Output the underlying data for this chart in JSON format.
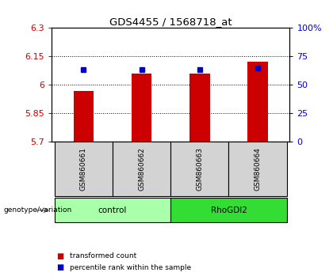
{
  "title": "GDS4455 / 1568718_at",
  "samples": [
    "GSM860661",
    "GSM860662",
    "GSM860663",
    "GSM860664"
  ],
  "bar_values": [
    5.965,
    6.06,
    6.06,
    6.12
  ],
  "percentile_values": [
    63,
    63,
    63,
    65
  ],
  "ymin": 5.7,
  "ymax": 6.3,
  "yticks": [
    5.7,
    5.85,
    6.0,
    6.15,
    6.3
  ],
  "ytick_labels": [
    "5.7",
    "5.85",
    "6",
    "6.15",
    "6.3"
  ],
  "y2min": 0,
  "y2max": 100,
  "y2ticks": [
    0,
    25,
    50,
    75,
    100
  ],
  "y2tick_labels": [
    "0",
    "25",
    "50",
    "75",
    "100%"
  ],
  "bar_color": "#cc0000",
  "dot_color": "#0000cc",
  "bar_width": 0.35,
  "groups": [
    {
      "label": "control",
      "indices": [
        0,
        1
      ],
      "color": "#aaffaa"
    },
    {
      "label": "RhoGDI2",
      "indices": [
        2,
        3
      ],
      "color": "#33dd33"
    }
  ],
  "genotype_label": "genotype/variation",
  "legend_bar_label": "transformed count",
  "legend_dot_label": "percentile rank within the sample",
  "left_tick_color": "#cc0000",
  "right_tick_color": "#0000cc",
  "sample_box_color": "#d3d3d3",
  "fig_width": 4.2,
  "fig_height": 3.54,
  "dpi": 100
}
